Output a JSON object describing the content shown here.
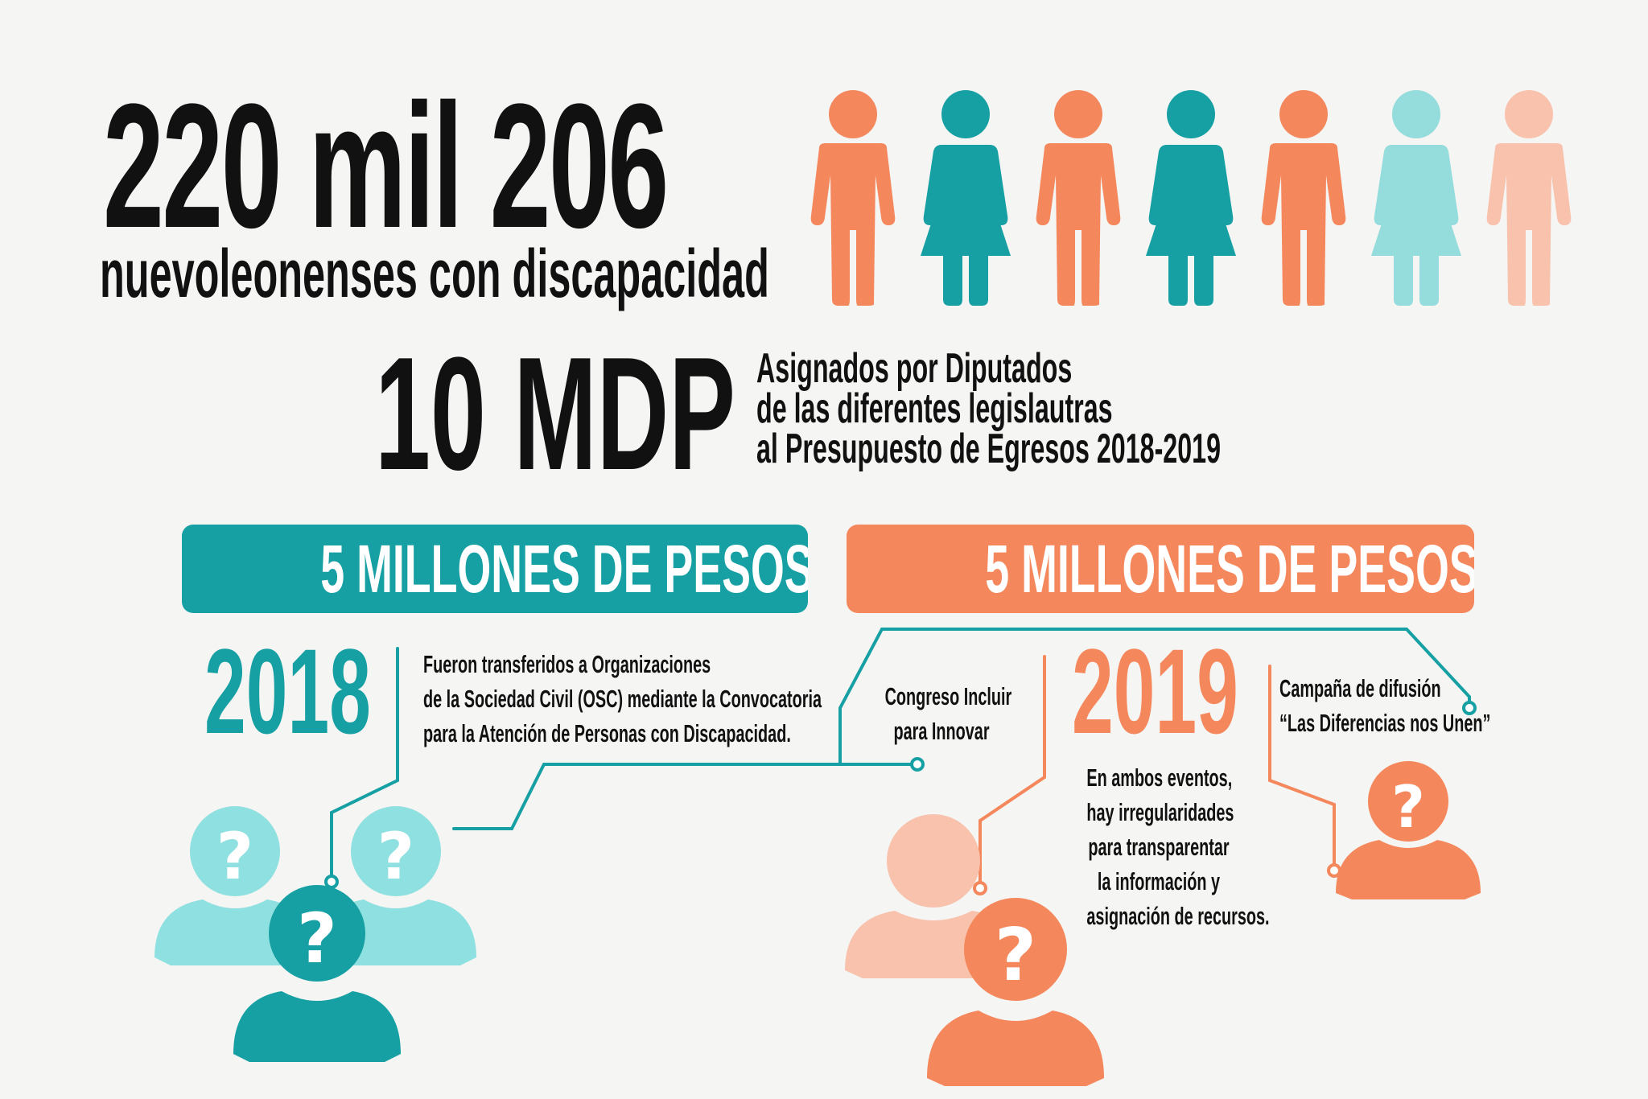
{
  "headline": {
    "count": "220 mil 206",
    "subtitle": "nuevoleonenses con discapacidad"
  },
  "budget": {
    "amount": "10 MDP",
    "description_lines": [
      "Asignados por Diputados",
      "de las diferentes legislautras",
      "al Presupuesto de Egresos 2018-2019"
    ]
  },
  "banners": {
    "left": "5 MILLONES DE PESOS",
    "right": "5 MILLONES DE PESOS"
  },
  "year_2018": {
    "year": "2018",
    "description_lines": [
      "Fueron transferidos a Organizaciones",
      "de la Sociedad Civil (OSC) mediante la Convocatoria",
      "para la Atención de Personas con Discapacidad."
    ]
  },
  "year_2019": {
    "year": "2019",
    "event1_lines": [
      "Congreso Incluir",
      "para Innovar"
    ],
    "event2_lines": [
      "Campaña de difusión",
      "“Las Diferencias nos Unen”"
    ],
    "note_lines": [
      "En ambos eventos,",
      "hay irregularidades",
      "para transparentar",
      "la información y",
      "asignación de recursos."
    ]
  },
  "colors": {
    "teal": "#16a0a3",
    "light_teal": "#8fe0e0",
    "orange": "#f5875c",
    "peach": "#f8c2ad",
    "text": "#111111"
  },
  "icons": {
    "people_row": [
      "man-icon",
      "woman-icon",
      "man-icon",
      "woman-icon",
      "man-icon",
      "woman-icon",
      "man-icon"
    ],
    "unknown_person": "question-mark-person-icon"
  }
}
